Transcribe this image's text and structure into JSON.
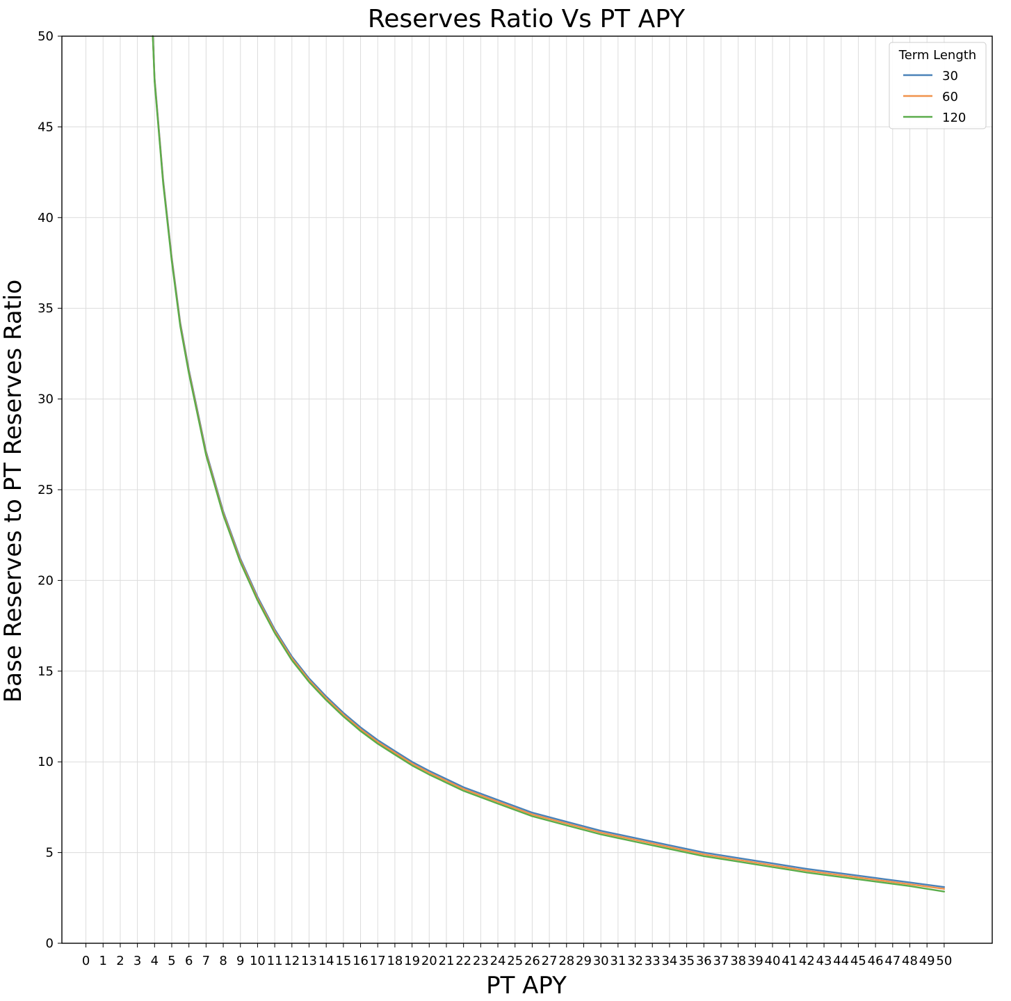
{
  "chart_data": {
    "type": "line",
    "title": "Reserves Ratio Vs PT APY",
    "xlabel": "PT APY",
    "ylabel": "Base Reserves to PT Reserves Ratio",
    "xlim": [
      -1.4,
      52.8
    ],
    "ylim": [
      0,
      50
    ],
    "x_ticks": [
      0,
      1,
      2,
      3,
      4,
      5,
      6,
      7,
      8,
      9,
      10,
      11,
      12,
      13,
      14,
      15,
      16,
      17,
      18,
      19,
      20,
      21,
      22,
      23,
      24,
      25,
      26,
      27,
      28,
      29,
      30,
      31,
      32,
      33,
      34,
      35,
      36,
      37,
      38,
      39,
      40,
      41,
      42,
      43,
      44,
      45,
      46,
      47,
      48,
      49,
      50
    ],
    "y_ticks": [
      0,
      5,
      10,
      15,
      20,
      25,
      30,
      35,
      40,
      45,
      50
    ],
    "grid": true,
    "legend": {
      "title": "Term Length",
      "position": "top-right"
    },
    "x": [
      3.9,
      4,
      4.5,
      5,
      5.5,
      6,
      7,
      8,
      9,
      10,
      11,
      12,
      13,
      14,
      15,
      16,
      17,
      18,
      19,
      20,
      22,
      24,
      26,
      28,
      30,
      32,
      34,
      36,
      38,
      40,
      42,
      44,
      46,
      48,
      50
    ],
    "series": [
      {
        "name": "30",
        "color": "#4a82b8",
        "values": [
          50.2,
          47.7,
          42.1,
          37.8,
          34.2,
          31.6,
          27.1,
          23.8,
          21.2,
          19.1,
          17.3,
          15.8,
          14.6,
          13.6,
          12.7,
          11.9,
          11.2,
          10.6,
          10.0,
          9.5,
          8.6,
          7.9,
          7.2,
          6.7,
          6.2,
          5.8,
          5.4,
          5.0,
          4.7,
          4.4,
          4.1,
          3.85,
          3.6,
          3.35,
          3.1
        ]
      },
      {
        "name": "60",
        "color": "#f0924a",
        "values": [
          50.1,
          47.6,
          42.0,
          37.7,
          34.1,
          31.5,
          27.0,
          23.7,
          21.1,
          19.0,
          17.2,
          15.7,
          14.5,
          13.5,
          12.6,
          11.8,
          11.1,
          10.5,
          9.9,
          9.4,
          8.5,
          7.8,
          7.1,
          6.6,
          6.1,
          5.7,
          5.3,
          4.9,
          4.6,
          4.3,
          4.0,
          3.75,
          3.5,
          3.25,
          3.0
        ]
      },
      {
        "name": "120",
        "color": "#5aac4a",
        "values": [
          50.0,
          47.5,
          41.9,
          37.6,
          34.0,
          31.4,
          26.9,
          23.6,
          21.0,
          18.9,
          17.1,
          15.6,
          14.4,
          13.4,
          12.5,
          11.7,
          11.0,
          10.4,
          9.8,
          9.3,
          8.4,
          7.7,
          7.0,
          6.5,
          6.0,
          5.6,
          5.2,
          4.8,
          4.5,
          4.2,
          3.9,
          3.65,
          3.4,
          3.15,
          2.85
        ]
      }
    ]
  }
}
